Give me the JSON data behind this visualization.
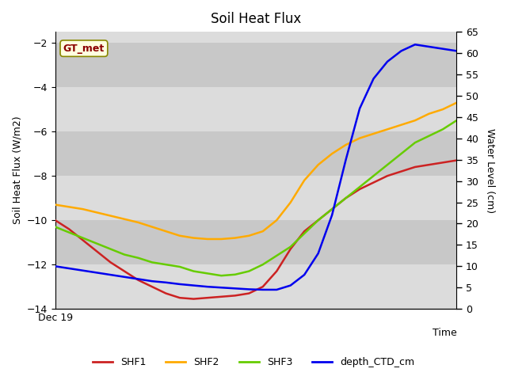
{
  "title": "Soil Heat Flux",
  "xlabel": "Time",
  "ylabel_left": "Soil Heat Flux (W/m2)",
  "ylabel_right": "Water Level (cm)",
  "annotation": "GT_met",
  "x_tick_label": "Dec 19",
  "left_ylim": [
    -14,
    -1.5
  ],
  "right_ylim": [
    0,
    65
  ],
  "left_yticks": [
    -14,
    -12,
    -10,
    -8,
    -6,
    -4,
    -2
  ],
  "right_yticks": [
    0,
    5,
    10,
    15,
    20,
    25,
    30,
    35,
    40,
    45,
    50,
    55,
    60,
    65
  ],
  "band_color_light": "#dcdcdc",
  "band_color_dark": "#c8c8c8",
  "shf1_color": "#cc2222",
  "shf2_color": "#ffaa00",
  "shf3_color": "#66cc00",
  "ctd_color": "#0000ee",
  "n_points": 30,
  "SHF1": [
    -10.0,
    -10.4,
    -10.9,
    -11.4,
    -11.9,
    -12.3,
    -12.7,
    -13.0,
    -13.3,
    -13.5,
    -13.55,
    -13.5,
    -13.45,
    -13.4,
    -13.3,
    -13.0,
    -12.3,
    -11.3,
    -10.5,
    -10.0,
    -9.5,
    -9.0,
    -8.6,
    -8.3,
    -8.0,
    -7.8,
    -7.6,
    -7.5,
    -7.4,
    -7.3
  ],
  "SHF2": [
    -9.3,
    -9.4,
    -9.5,
    -9.65,
    -9.8,
    -9.95,
    -10.1,
    -10.3,
    -10.5,
    -10.7,
    -10.8,
    -10.85,
    -10.85,
    -10.8,
    -10.7,
    -10.5,
    -10.0,
    -9.2,
    -8.2,
    -7.5,
    -7.0,
    -6.6,
    -6.3,
    -6.1,
    -5.9,
    -5.7,
    -5.5,
    -5.2,
    -5.0,
    -4.7
  ],
  "SHF3": [
    -10.3,
    -10.55,
    -10.8,
    -11.05,
    -11.3,
    -11.55,
    -11.7,
    -11.9,
    -12.0,
    -12.1,
    -12.3,
    -12.4,
    -12.5,
    -12.45,
    -12.3,
    -12.0,
    -11.6,
    -11.2,
    -10.6,
    -10.0,
    -9.5,
    -9.0,
    -8.5,
    -8.0,
    -7.5,
    -7.0,
    -6.5,
    -6.2,
    -5.9,
    -5.5
  ],
  "depth_CTD_right": [
    10,
    9.5,
    9.0,
    8.5,
    8.0,
    7.5,
    7.0,
    6.5,
    6.2,
    5.8,
    5.5,
    5.2,
    5.0,
    4.8,
    4.6,
    4.5,
    4.5,
    5.5,
    8.0,
    13.0,
    22.0,
    35.0,
    47.0,
    54.0,
    58.0,
    60.5,
    62.0,
    61.5,
    61.0,
    60.5
  ]
}
